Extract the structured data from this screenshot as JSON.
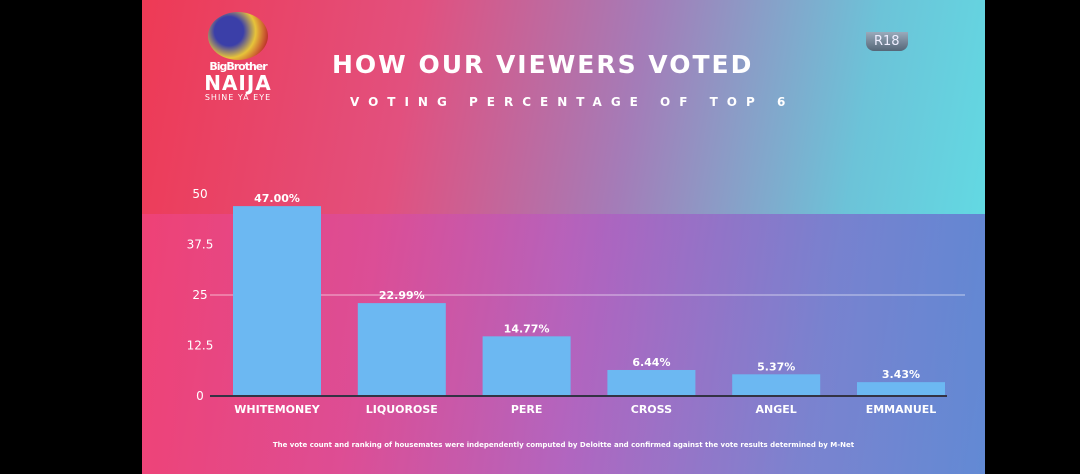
{
  "logo": {
    "line1": "BigBrother",
    "line2": "NAIJA",
    "line3": "SHINE YA EYE"
  },
  "rating": "R18",
  "footnote": "The vote count and ranking of housemates were independently computed by Deloitte and confirmed against the vote results determined by M-Net",
  "colors": {
    "bar": "#6cb8f2",
    "text": "#ffffff"
  },
  "chart_data": {
    "type": "bar",
    "title": "HOW OUR VIEWERS VOTED",
    "subtitle": "VOTING PERCENTAGE OF TOP 6",
    "categories": [
      "WHITEMONEY",
      "LIQUOROSE",
      "PERE",
      "CROSS",
      "ANGEL",
      "EMMANUEL"
    ],
    "values": [
      47.0,
      22.99,
      14.77,
      6.44,
      5.37,
      3.43
    ],
    "data_labels": [
      "47.00%",
      "22.99%",
      "14.77%",
      "6.44%",
      "5.37%",
      "3.43%"
    ],
    "yticks": [
      "0",
      "12.5",
      "25",
      "37.5",
      "50"
    ],
    "ytick_values": [
      0,
      12.5,
      25,
      37.5,
      50
    ],
    "ylim": [
      0,
      50
    ],
    "gridline_at": 25,
    "xlabel": "",
    "ylabel": ""
  }
}
